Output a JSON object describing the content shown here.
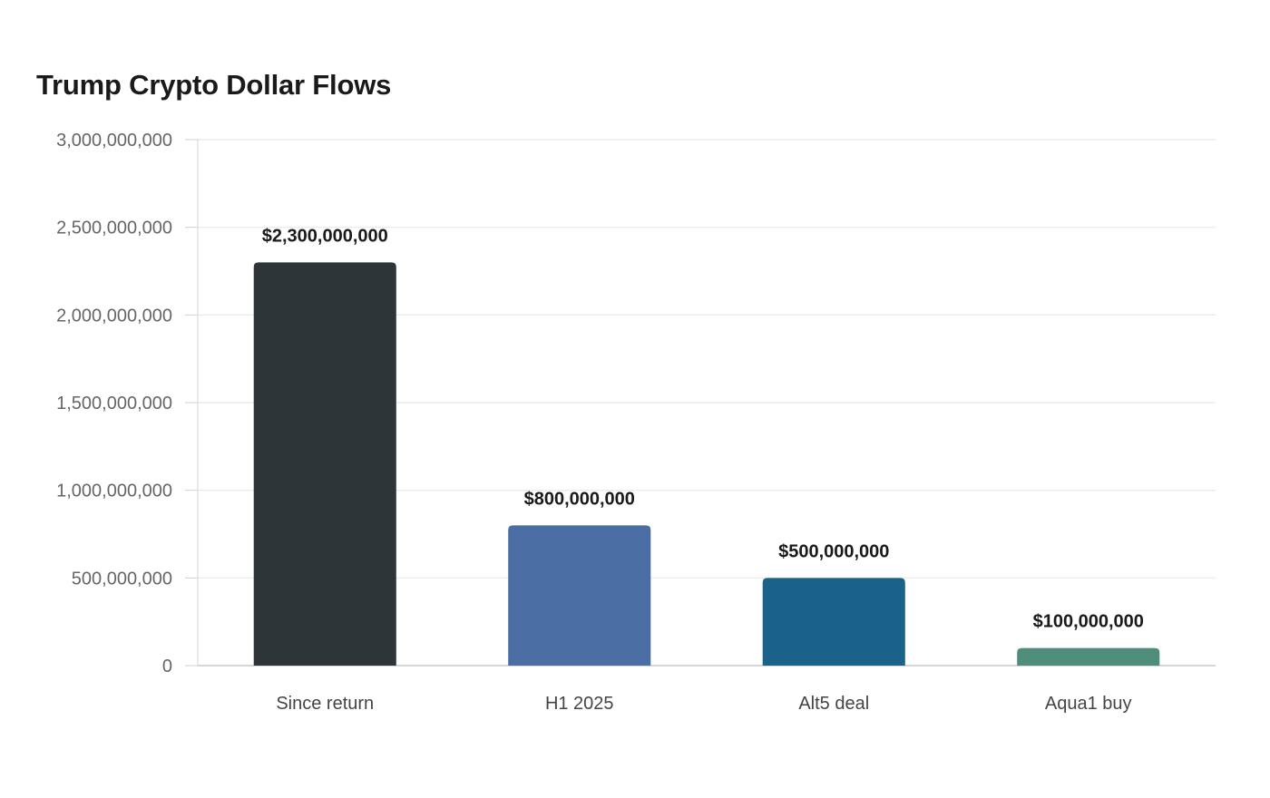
{
  "chart_data": {
    "type": "bar",
    "title": "Trump Crypto Dollar Flows",
    "xlabel": "",
    "ylabel": "",
    "categories": [
      "Since return",
      "H1 2025",
      "Alt5 deal",
      "Aqua1 buy"
    ],
    "values": [
      2300000000,
      800000000,
      500000000,
      100000000
    ],
    "data_labels": [
      "$2,300,000,000",
      "$800,000,000",
      "$500,000,000",
      "$100,000,000"
    ],
    "ylim": [
      0,
      3000000000
    ],
    "yticks": [
      0,
      500000000,
      1000000000,
      1500000000,
      2000000000,
      2500000000,
      3000000000
    ],
    "ytick_labels": [
      "0",
      "500,000,000",
      "1,000,000,000",
      "1,500,000,000",
      "2,000,000,000",
      "2,500,000,000",
      "3,000,000,000"
    ],
    "colors": [
      "#2e3538",
      "#4a6ea3",
      "#1a6289",
      "#4e8d7b"
    ],
    "grid": true,
    "legend": "none"
  }
}
